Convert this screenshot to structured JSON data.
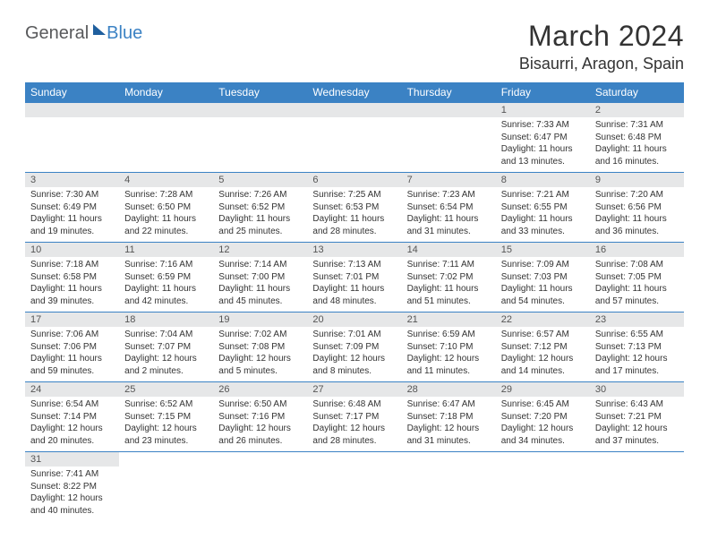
{
  "brand": {
    "part1": "General",
    "part2": "Blue"
  },
  "title": "March 2024",
  "location": "Bisaurri, Aragon, Spain",
  "day_names": [
    "Sunday",
    "Monday",
    "Tuesday",
    "Wednesday",
    "Thursday",
    "Friday",
    "Saturday"
  ],
  "colors": {
    "header_bg": "#3b82c4",
    "header_text": "#ffffff",
    "numrow_bg": "#e6e7e8",
    "border": "#3b82c4"
  },
  "weeks": [
    {
      "nums": [
        "",
        "",
        "",
        "",
        "",
        "1",
        "2"
      ],
      "cells": [
        null,
        null,
        null,
        null,
        null,
        {
          "sunrise": "Sunrise: 7:33 AM",
          "sunset": "Sunset: 6:47 PM",
          "daylight": "Daylight: 11 hours and 13 minutes."
        },
        {
          "sunrise": "Sunrise: 7:31 AM",
          "sunset": "Sunset: 6:48 PM",
          "daylight": "Daylight: 11 hours and 16 minutes."
        }
      ]
    },
    {
      "nums": [
        "3",
        "4",
        "5",
        "6",
        "7",
        "8",
        "9"
      ],
      "cells": [
        {
          "sunrise": "Sunrise: 7:30 AM",
          "sunset": "Sunset: 6:49 PM",
          "daylight": "Daylight: 11 hours and 19 minutes."
        },
        {
          "sunrise": "Sunrise: 7:28 AM",
          "sunset": "Sunset: 6:50 PM",
          "daylight": "Daylight: 11 hours and 22 minutes."
        },
        {
          "sunrise": "Sunrise: 7:26 AM",
          "sunset": "Sunset: 6:52 PM",
          "daylight": "Daylight: 11 hours and 25 minutes."
        },
        {
          "sunrise": "Sunrise: 7:25 AM",
          "sunset": "Sunset: 6:53 PM",
          "daylight": "Daylight: 11 hours and 28 minutes."
        },
        {
          "sunrise": "Sunrise: 7:23 AM",
          "sunset": "Sunset: 6:54 PM",
          "daylight": "Daylight: 11 hours and 31 minutes."
        },
        {
          "sunrise": "Sunrise: 7:21 AM",
          "sunset": "Sunset: 6:55 PM",
          "daylight": "Daylight: 11 hours and 33 minutes."
        },
        {
          "sunrise": "Sunrise: 7:20 AM",
          "sunset": "Sunset: 6:56 PM",
          "daylight": "Daylight: 11 hours and 36 minutes."
        }
      ]
    },
    {
      "nums": [
        "10",
        "11",
        "12",
        "13",
        "14",
        "15",
        "16"
      ],
      "cells": [
        {
          "sunrise": "Sunrise: 7:18 AM",
          "sunset": "Sunset: 6:58 PM",
          "daylight": "Daylight: 11 hours and 39 minutes."
        },
        {
          "sunrise": "Sunrise: 7:16 AM",
          "sunset": "Sunset: 6:59 PM",
          "daylight": "Daylight: 11 hours and 42 minutes."
        },
        {
          "sunrise": "Sunrise: 7:14 AM",
          "sunset": "Sunset: 7:00 PM",
          "daylight": "Daylight: 11 hours and 45 minutes."
        },
        {
          "sunrise": "Sunrise: 7:13 AM",
          "sunset": "Sunset: 7:01 PM",
          "daylight": "Daylight: 11 hours and 48 minutes."
        },
        {
          "sunrise": "Sunrise: 7:11 AM",
          "sunset": "Sunset: 7:02 PM",
          "daylight": "Daylight: 11 hours and 51 minutes."
        },
        {
          "sunrise": "Sunrise: 7:09 AM",
          "sunset": "Sunset: 7:03 PM",
          "daylight": "Daylight: 11 hours and 54 minutes."
        },
        {
          "sunrise": "Sunrise: 7:08 AM",
          "sunset": "Sunset: 7:05 PM",
          "daylight": "Daylight: 11 hours and 57 minutes."
        }
      ]
    },
    {
      "nums": [
        "17",
        "18",
        "19",
        "20",
        "21",
        "22",
        "23"
      ],
      "cells": [
        {
          "sunrise": "Sunrise: 7:06 AM",
          "sunset": "Sunset: 7:06 PM",
          "daylight": "Daylight: 11 hours and 59 minutes."
        },
        {
          "sunrise": "Sunrise: 7:04 AM",
          "sunset": "Sunset: 7:07 PM",
          "daylight": "Daylight: 12 hours and 2 minutes."
        },
        {
          "sunrise": "Sunrise: 7:02 AM",
          "sunset": "Sunset: 7:08 PM",
          "daylight": "Daylight: 12 hours and 5 minutes."
        },
        {
          "sunrise": "Sunrise: 7:01 AM",
          "sunset": "Sunset: 7:09 PM",
          "daylight": "Daylight: 12 hours and 8 minutes."
        },
        {
          "sunrise": "Sunrise: 6:59 AM",
          "sunset": "Sunset: 7:10 PM",
          "daylight": "Daylight: 12 hours and 11 minutes."
        },
        {
          "sunrise": "Sunrise: 6:57 AM",
          "sunset": "Sunset: 7:12 PM",
          "daylight": "Daylight: 12 hours and 14 minutes."
        },
        {
          "sunrise": "Sunrise: 6:55 AM",
          "sunset": "Sunset: 7:13 PM",
          "daylight": "Daylight: 12 hours and 17 minutes."
        }
      ]
    },
    {
      "nums": [
        "24",
        "25",
        "26",
        "27",
        "28",
        "29",
        "30"
      ],
      "cells": [
        {
          "sunrise": "Sunrise: 6:54 AM",
          "sunset": "Sunset: 7:14 PM",
          "daylight": "Daylight: 12 hours and 20 minutes."
        },
        {
          "sunrise": "Sunrise: 6:52 AM",
          "sunset": "Sunset: 7:15 PM",
          "daylight": "Daylight: 12 hours and 23 minutes."
        },
        {
          "sunrise": "Sunrise: 6:50 AM",
          "sunset": "Sunset: 7:16 PM",
          "daylight": "Daylight: 12 hours and 26 minutes."
        },
        {
          "sunrise": "Sunrise: 6:48 AM",
          "sunset": "Sunset: 7:17 PM",
          "daylight": "Daylight: 12 hours and 28 minutes."
        },
        {
          "sunrise": "Sunrise: 6:47 AM",
          "sunset": "Sunset: 7:18 PM",
          "daylight": "Daylight: 12 hours and 31 minutes."
        },
        {
          "sunrise": "Sunrise: 6:45 AM",
          "sunset": "Sunset: 7:20 PM",
          "daylight": "Daylight: 12 hours and 34 minutes."
        },
        {
          "sunrise": "Sunrise: 6:43 AM",
          "sunset": "Sunset: 7:21 PM",
          "daylight": "Daylight: 12 hours and 37 minutes."
        }
      ]
    },
    {
      "nums": [
        "31",
        "",
        "",
        "",
        "",
        "",
        ""
      ],
      "cells": [
        {
          "sunrise": "Sunrise: 7:41 AM",
          "sunset": "Sunset: 8:22 PM",
          "daylight": "Daylight: 12 hours and 40 minutes."
        },
        null,
        null,
        null,
        null,
        null,
        null
      ]
    }
  ]
}
